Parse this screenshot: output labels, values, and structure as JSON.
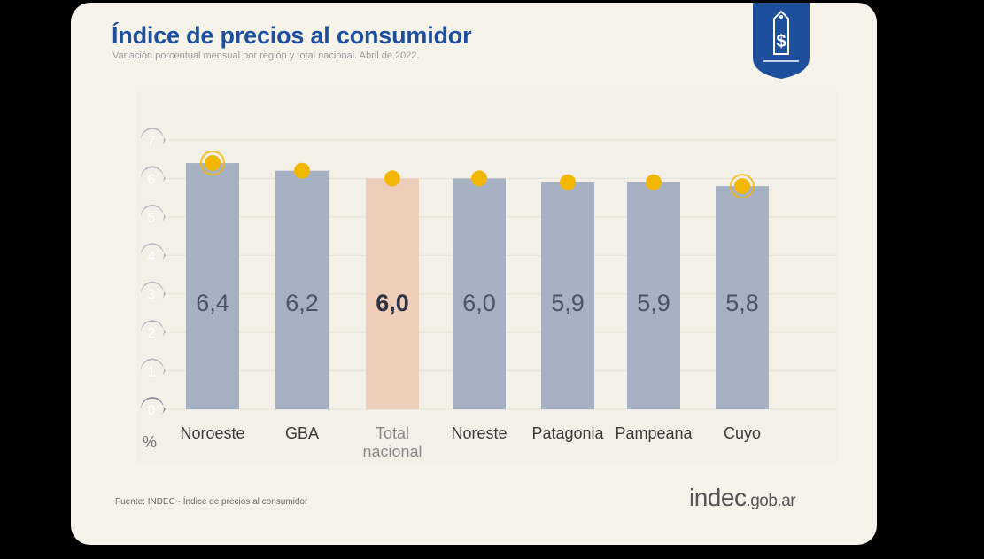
{
  "header": {
    "title": "Índice de precios al consumidor",
    "subtitle": "Variación porcentual mensual por región y total nacional. Abril de 2022."
  },
  "footer": {
    "source": "Fuente: INDEC - Índice de precios al consumidor",
    "site_main": "indec",
    "site_suffix": ".gob.ar"
  },
  "logo_icon": "price-tag-dollar-icon",
  "colors": {
    "title": "#1d4f9c",
    "bar": "#a6b2c4",
    "highlight_bar": "#eecdb9",
    "marker": "#f2b705",
    "axis_badge": "#b6b5bd",
    "axis_badge_zero": "#8a8aa0"
  },
  "chart_data": {
    "type": "bar",
    "title": "Índice de precios al consumidor",
    "subtitle": "Variación porcentual mensual por región y total nacional. Abril de 2022.",
    "ylabel": "%",
    "ylim": [
      0,
      7
    ],
    "yticks": [
      "0",
      "1",
      "2",
      "3",
      "4",
      "5",
      "6",
      "7"
    ],
    "grid": true,
    "categories": [
      "Noroeste",
      "GBA",
      "Total nacional",
      "Noreste",
      "Patagonia",
      "Pampeana",
      "Cuyo"
    ],
    "values": [
      6.4,
      6.2,
      6.0,
      6.0,
      5.9,
      5.9,
      5.8
    ],
    "data_labels": [
      "6,4",
      "6,2",
      "6,0",
      "6,0",
      "5,9",
      "5,9",
      "5,8"
    ],
    "highlight": "Total nacional"
  }
}
